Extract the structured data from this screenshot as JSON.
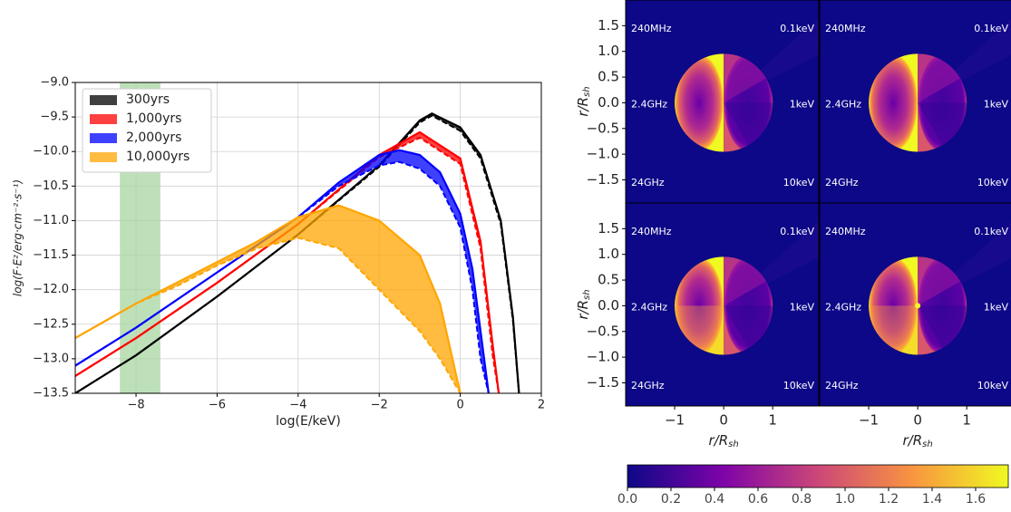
{
  "chart_data": [
    {
      "type": "line",
      "xlabel": "log(E/keV)",
      "ylabel": "log(F·E²/erg·cm⁻²·s⁻¹)",
      "xlim": [
        -9.5,
        2
      ],
      "ylim": [
        -13.5,
        -9.0
      ],
      "xticks": [
        {
          "value": -8,
          "label": "−8"
        },
        {
          "value": -6,
          "label": "−6"
        },
        {
          "value": -4,
          "label": "−4"
        },
        {
          "value": -2,
          "label": "−2"
        },
        0,
        2
      ],
      "yticks": [
        {
          "value": -9.0,
          "label": "−9.0"
        },
        {
          "value": -9.5,
          "label": "−9.5"
        },
        {
          "value": -10.0,
          "label": "−10.0"
        },
        {
          "value": -10.5,
          "label": "−10.5"
        },
        {
          "value": -11.0,
          "label": "−11.0"
        },
        {
          "value": -11.5,
          "label": "−11.5"
        },
        {
          "value": -12.0,
          "label": "−12.0"
        },
        {
          "value": -12.5,
          "label": "−12.5"
        },
        {
          "value": -13.0,
          "label": "−13.0"
        },
        {
          "value": -13.5,
          "label": "−13.5"
        }
      ],
      "grid": true,
      "legend": "upper-left",
      "shaded_x": [
        -8.4,
        -7.4
      ],
      "shaded_color": "#a8d5a2",
      "series": [
        {
          "name": "300yrs",
          "color": "#000000",
          "x": [
            -9.5,
            -8,
            -6,
            -4,
            -2,
            -1,
            -0.7,
            0,
            0.5,
            1,
            1.3,
            1.45
          ],
          "values": [
            -13.5,
            -12.95,
            -12.1,
            -11.2,
            -10.2,
            -9.55,
            -9.45,
            -9.65,
            -10.05,
            -11.0,
            -12.4,
            -13.5
          ],
          "lower": [
            -13.5,
            -12.95,
            -12.1,
            -11.2,
            -10.22,
            -9.58,
            -9.48,
            -9.7,
            -10.1,
            -11.05,
            -12.45,
            -13.5
          ]
        },
        {
          "name": "1,000yrs",
          "color": "#ff0000",
          "x": [
            -9.5,
            -8,
            -6,
            -4,
            -2,
            -1,
            0,
            0.5,
            0.8,
            0.95
          ],
          "values": [
            -13.25,
            -12.7,
            -11.9,
            -11.05,
            -10.05,
            -9.72,
            -10.1,
            -11.3,
            -12.8,
            -13.5
          ],
          "lower": [
            -13.25,
            -12.7,
            -11.9,
            -11.05,
            -10.08,
            -9.8,
            -10.18,
            -11.4,
            -12.95,
            -13.5
          ]
        },
        {
          "name": "2,000yrs",
          "color": "#0000ff",
          "x": [
            -9.5,
            -8,
            -6,
            -4,
            -3,
            -2,
            -1.5,
            -1,
            -0.5,
            0,
            0.3,
            0.5,
            0.7
          ],
          "values": [
            -13.1,
            -12.55,
            -11.75,
            -10.95,
            -10.45,
            -10.05,
            -9.98,
            -10.05,
            -10.3,
            -10.9,
            -11.7,
            -12.6,
            -13.5
          ],
          "lower": [
            -13.1,
            -12.55,
            -11.75,
            -10.95,
            -10.5,
            -10.2,
            -10.15,
            -10.25,
            -10.5,
            -11.1,
            -12.0,
            -13.0,
            -13.5
          ]
        },
        {
          "name": "10,000yrs",
          "color": "#ffa500",
          "x": [
            -9.5,
            -8,
            -7,
            -6,
            -5,
            -4,
            -3,
            -2,
            -1,
            -0.5,
            0
          ],
          "values": [
            -12.7,
            -12.2,
            -11.9,
            -11.6,
            -11.3,
            -10.95,
            -10.78,
            -11.0,
            -11.5,
            -12.2,
            -13.5
          ],
          "lower": [
            -12.7,
            -12.2,
            -11.95,
            -11.65,
            -11.4,
            -11.25,
            -11.4,
            -12.0,
            -12.6,
            -13.0,
            -13.5
          ]
        }
      ]
    },
    {
      "type": "image-grid",
      "xlabel": {
        "main": "r/R",
        "sub": "sh"
      },
      "ylabel": {
        "main": "r/R",
        "sub": "sh"
      },
      "xlim": [
        -2,
        1.94
      ],
      "ylim": [
        -1.95,
        2.0
      ],
      "xticks": [
        {
          "value": -1,
          "label": "−1"
        },
        0,
        1
      ],
      "yticks": [
        1.5,
        {
          "value": 1.0,
          "label": "1.0"
        },
        0.5,
        {
          "value": 0.0,
          "label": "0.0"
        },
        {
          "value": -0.5,
          "label": "−0.5"
        },
        {
          "value": -1.0,
          "label": "−1.0"
        },
        {
          "value": -1.5,
          "label": "−1.5"
        }
      ],
      "corner_labels": [
        "240MHz",
        "0.1keV",
        "2.4GHz",
        "1keV",
        "24GHz",
        "10keV"
      ],
      "colormap": [
        "#0d0887",
        "#7e03a8",
        "#cc4778",
        "#f89540",
        "#f0f921"
      ],
      "clim": [
        0,
        1.75
      ],
      "colorbar_ticks": [
        {
          "value": 0.0,
          "label": "0.0"
        },
        0.2,
        0.4,
        0.6,
        0.8,
        {
          "value": 1.0,
          "label": "1.0"
        },
        1.2,
        1.4,
        1.6
      ]
    }
  ]
}
